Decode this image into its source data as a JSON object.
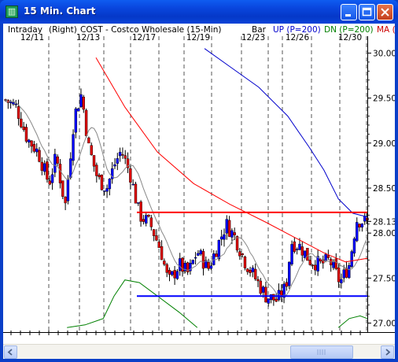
{
  "window": {
    "title": "15 Min. Chart",
    "icon": "chart-app-icon"
  },
  "header": {
    "mode": "Intraday",
    "axis_side": "(Right)",
    "symbol_desc": "COST - Costco Wholesale  (15-Min)",
    "bar_label": "Bar",
    "up_label": "UP (P=200)",
    "dn_label": "DN (P=200)",
    "ma_label": "MA (",
    "colors": {
      "up": "#0000cc",
      "dn": "#008000",
      "ma": "#cc0000"
    }
  },
  "chart_data": {
    "type": "candlestick",
    "title": "COST - Costco Wholesale (15-Min)",
    "x_tick_labels": [
      "12/11",
      "12/13",
      "12/17",
      "12/19",
      "12/23",
      "12/26",
      "12/30"
    ],
    "y_tick_labels": [
      "30.00",
      "29.50",
      "29.00",
      "28.50",
      "28.13",
      "28.00",
      "27.50",
      "27.00"
    ],
    "y_axis_side": "right",
    "ylim": [
      26.9,
      30.1
    ],
    "horizontal_lines": [
      {
        "value": 28.23,
        "color": "#ff0000"
      },
      {
        "value": 27.3,
        "color": "#0000ff"
      }
    ],
    "last_price": 28.13,
    "close_path": [
      [
        0,
        29.48
      ],
      [
        0.03,
        29.4
      ],
      [
        0.06,
        29.05
      ],
      [
        0.09,
        28.9
      ],
      [
        0.12,
        28.55
      ],
      [
        0.14,
        28.85
      ],
      [
        0.165,
        28.3
      ],
      [
        0.19,
        29.3
      ],
      [
        0.21,
        29.55
      ],
      [
        0.23,
        28.95
      ],
      [
        0.255,
        28.6
      ],
      [
        0.28,
        28.5
      ],
      [
        0.3,
        28.75
      ],
      [
        0.32,
        28.92
      ],
      [
        0.345,
        28.65
      ],
      [
        0.37,
        28.2
      ],
      [
        0.4,
        28.1
      ],
      [
        0.43,
        27.8
      ],
      [
        0.45,
        27.45
      ],
      [
        0.48,
        27.65
      ],
      [
        0.505,
        27.55
      ],
      [
        0.53,
        27.8
      ],
      [
        0.56,
        27.6
      ],
      [
        0.585,
        27.85
      ],
      [
        0.61,
        28.1
      ],
      [
        0.635,
        27.95
      ],
      [
        0.66,
        27.7
      ],
      [
        0.69,
        27.5
      ],
      [
        0.72,
        27.3
      ],
      [
        0.75,
        27.25
      ],
      [
        0.775,
        27.4
      ],
      [
        0.79,
        27.9
      ],
      [
        0.815,
        27.85
      ],
      [
        0.84,
        27.7
      ],
      [
        0.87,
        27.65
      ],
      [
        0.895,
        27.7
      ],
      [
        0.925,
        27.45
      ],
      [
        0.95,
        27.65
      ],
      [
        0.97,
        28.15
      ],
      [
        1.0,
        28.12
      ]
    ],
    "series": [
      {
        "name": "MA",
        "color": "#ff0000"
      },
      {
        "name": "UP (P=200)",
        "color": "#0000cc"
      },
      {
        "name": "DN (P=200)",
        "color": "#008000"
      }
    ]
  }
}
